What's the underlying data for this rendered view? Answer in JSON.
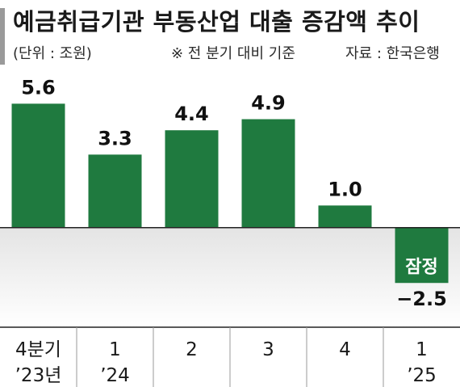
{
  "header": {
    "title": "예금취급기관 부동산업 대출 증감액 추이",
    "unit": "(단위 : 조원)",
    "note": "※ 전 분기 대비 기준",
    "source": "자료 : 한국은행"
  },
  "chart_data": {
    "type": "bar",
    "title": "예금취급기관 부동산업 대출 증감액 추이",
    "categories": [
      [
        "4분기",
        "’23년"
      ],
      [
        "1",
        "’24"
      ],
      [
        "2",
        ""
      ],
      [
        "3",
        ""
      ],
      [
        "4",
        ""
      ],
      [
        "1",
        "’25"
      ]
    ],
    "values": [
      5.6,
      3.3,
      4.4,
      4.9,
      1.0,
      -2.5
    ],
    "value_labels": [
      "5.6",
      "3.3",
      "4.4",
      "4.9",
      "1.0",
      "−2.5"
    ],
    "annotations": [
      {
        "category_index": 5,
        "text": "잠정"
      }
    ],
    "ylim": [
      -4.5,
      7.0
    ],
    "grid": false,
    "legend": "none",
    "colors": {
      "bar": "#1f7a3f",
      "negative_bg": "#e4e4e4",
      "axis": "#222222",
      "separator": "#9a9a9a"
    }
  }
}
